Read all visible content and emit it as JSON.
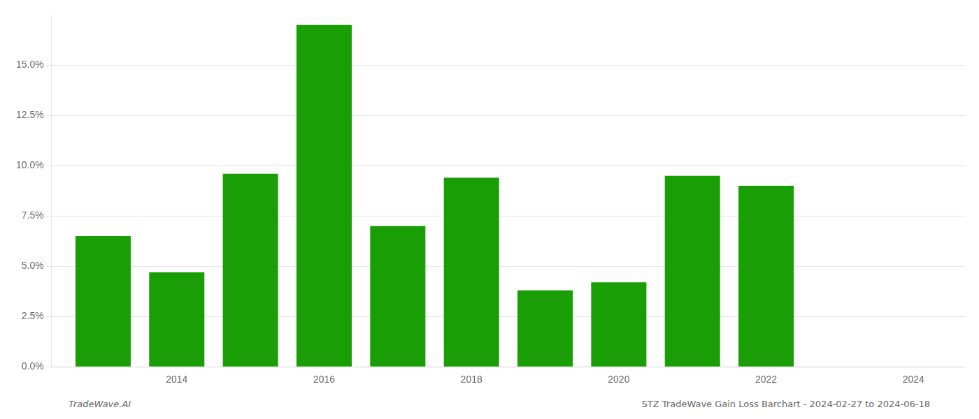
{
  "chart_data": {
    "type": "bar",
    "x": [
      2013,
      2014,
      2015,
      2016,
      2017,
      2018,
      2019,
      2020,
      2021,
      2022
    ],
    "values": [
      0.065,
      0.047,
      0.096,
      0.17,
      0.07,
      0.094,
      0.038,
      0.042,
      0.095,
      0.09
    ],
    "color": "#1a9e06",
    "xlim": [
      2012.3,
      2024.7
    ],
    "xticks": [
      2014,
      2016,
      2018,
      2020,
      2022,
      2024
    ],
    "ylim": [
      0,
      0.175
    ],
    "yticks": [
      {
        "value": 0.0,
        "label": "0.0%"
      },
      {
        "value": 0.025,
        "label": "2.5%"
      },
      {
        "value": 0.05,
        "label": "5.0%"
      },
      {
        "value": 0.075,
        "label": "7.5%"
      },
      {
        "value": 0.1,
        "label": "10.0%"
      },
      {
        "value": 0.125,
        "label": "12.5%"
      },
      {
        "value": 0.15,
        "label": "15.0%"
      }
    ],
    "grid": "y",
    "annotations": [
      "TradeWave.AI",
      "STZ TradeWave Gain Loss Barchart - 2024-02-27 to 2024-06-18"
    ]
  }
}
